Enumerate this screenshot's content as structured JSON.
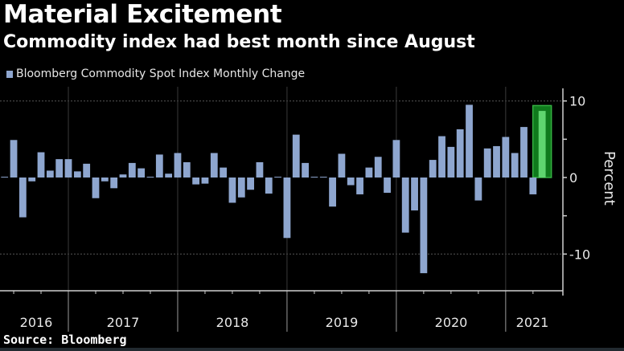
{
  "header": {
    "title": "Material Excitement",
    "subtitle": "Commodity index had best month since August"
  },
  "legend": {
    "label": "Bloomberg Commodity Spot Index Monthly Change",
    "color": "#8ea6cf"
  },
  "footer": {
    "source": "Source: Bloomberg"
  },
  "colors": {
    "bar": "#8ea6cf",
    "highlight_bar": "#5fd56f",
    "highlight_box_fill": "#0f7a1c",
    "highlight_box_border": "#35b042",
    "axis": "#d0d0d0",
    "grid": "#555555"
  },
  "chart_data": {
    "type": "bar",
    "title": "Material Excitement",
    "subtitle": "Commodity index had best month since August",
    "xlabel": "",
    "ylabel": "Percent",
    "ylim": [
      -14.5,
      11.5
    ],
    "y_ticks": [
      10,
      0,
      -10
    ],
    "y_minor_ticks": [
      5,
      -5
    ],
    "y_axis_side": "right",
    "grid": true,
    "legend_position": "top-left",
    "year_labels": [
      "2016",
      "2017",
      "2018",
      "2019",
      "2020",
      "2021"
    ],
    "categories": [
      "May 2016",
      "Jun 2016",
      "Jul 2016",
      "Aug 2016",
      "Sep 2016",
      "Oct 2016",
      "Nov 2016",
      "Dec 2016",
      "Jan 2017",
      "Feb 2017",
      "Mar 2017",
      "Apr 2017",
      "May 2017",
      "Jun 2017",
      "Jul 2017",
      "Aug 2017",
      "Sep 2017",
      "Oct 2017",
      "Nov 2017",
      "Dec 2017",
      "Jan 2018",
      "Feb 2018",
      "Mar 2018",
      "Apr 2018",
      "May 2018",
      "Jun 2018",
      "Jul 2018",
      "Aug 2018",
      "Sep 2018",
      "Oct 2018",
      "Nov 2018",
      "Dec 2018",
      "Jan 2019",
      "Feb 2019",
      "Mar 2019",
      "Apr 2019",
      "May 2019",
      "Jun 2019",
      "Jul 2019",
      "Aug 2019",
      "Sep 2019",
      "Oct 2019",
      "Nov 2019",
      "Dec 2019",
      "Jan 2020",
      "Feb 2020",
      "Mar 2020",
      "Apr 2020",
      "May 2020",
      "Jun 2020",
      "Jul 2020",
      "Aug 2020",
      "Sep 2020",
      "Oct 2020",
      "Nov 2020",
      "Dec 2020",
      "Jan 2021",
      "Feb 2021",
      "Mar 2021",
      "Apr 2021"
    ],
    "series": [
      {
        "name": "Bloomberg Commodity Spot Index Monthly Change",
        "values": [
          0.1,
          4.9,
          -5.2,
          -0.5,
          3.3,
          0.9,
          2.4,
          2.4,
          0.8,
          1.8,
          -2.7,
          -0.5,
          -1.4,
          0.4,
          1.9,
          1.2,
          0.1,
          3.0,
          0.5,
          3.2,
          2.0,
          -0.9,
          -0.8,
          3.2,
          1.3,
          -3.3,
          -2.6,
          -1.6,
          2.0,
          -2.1,
          0.1,
          -7.9,
          5.6,
          1.9,
          0.1,
          0.1,
          -3.8,
          3.1,
          -1.0,
          -2.2,
          1.3,
          2.7,
          -2.0,
          4.9,
          -7.2,
          -4.3,
          -12.5,
          2.3,
          5.4,
          4.0,
          6.3,
          9.5,
          -3.0,
          3.8,
          4.1,
          5.3,
          3.2,
          6.6,
          -2.2,
          8.7
        ]
      }
    ],
    "highlight_index": 59,
    "highlight_label": "Apr 2021"
  }
}
